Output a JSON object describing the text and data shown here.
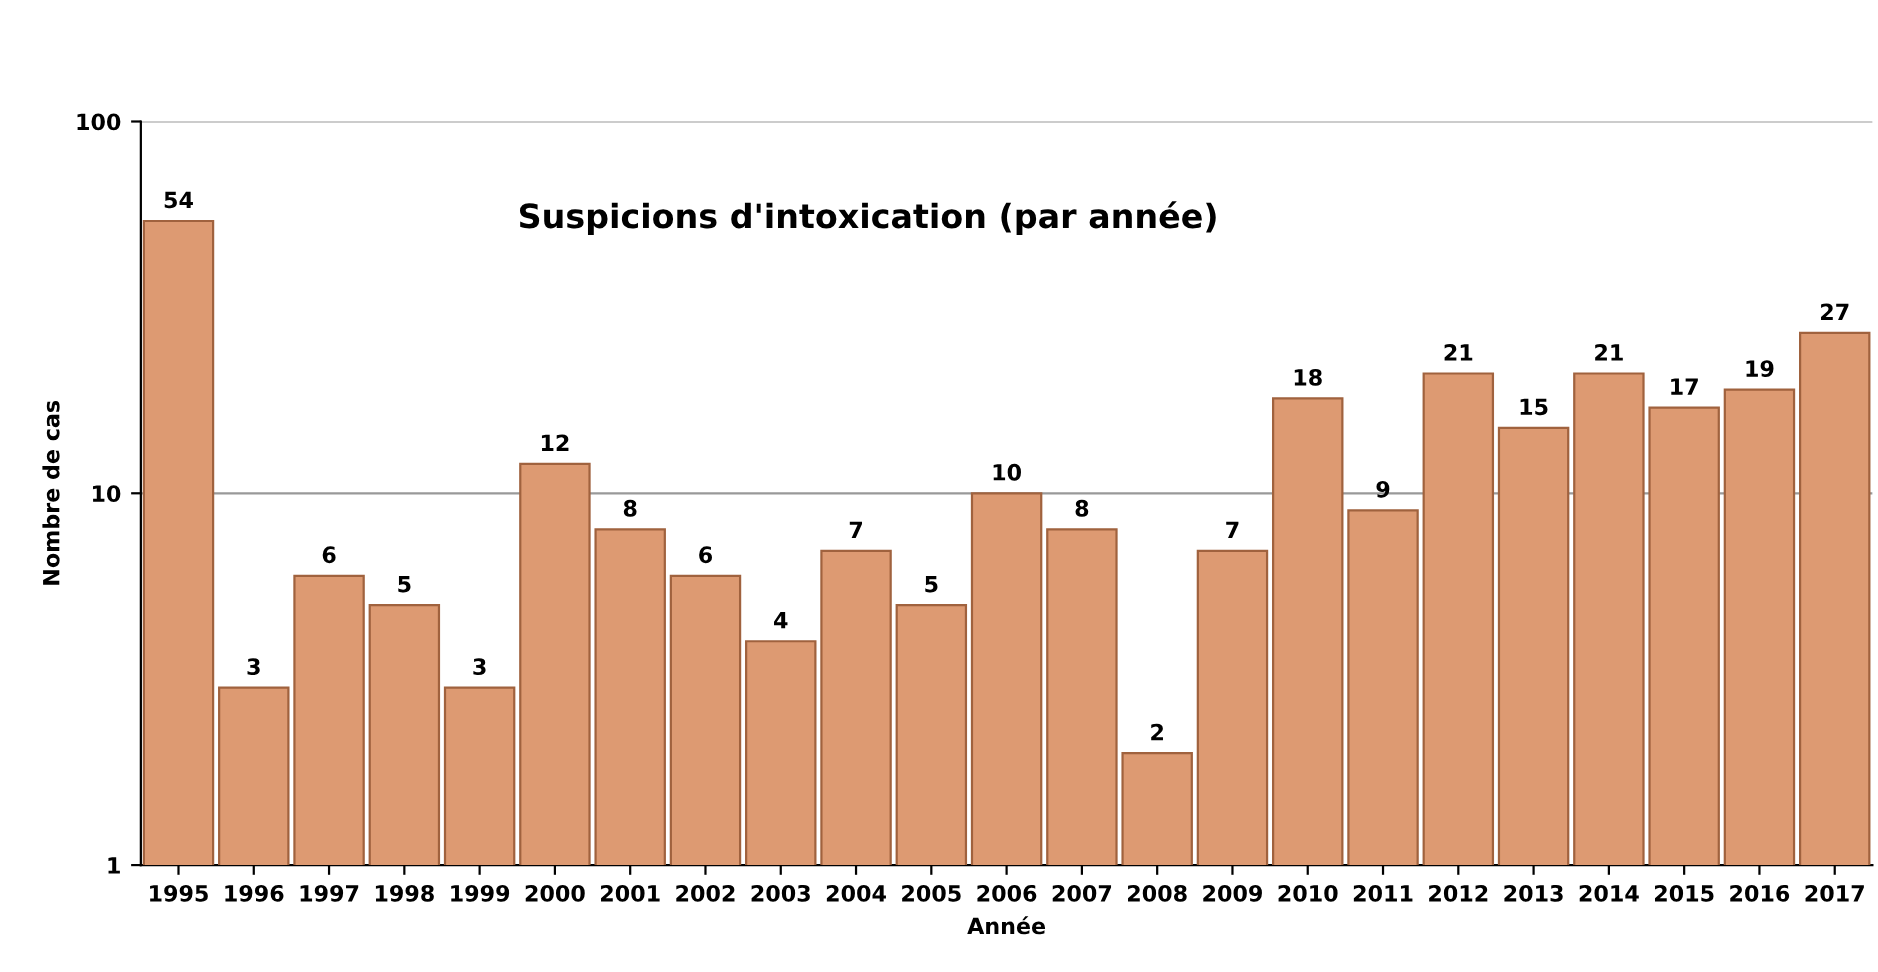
{
  "chart_data": {
    "type": "bar",
    "title": "Suspicions d'intoxication (par année)",
    "xlabel": "Année",
    "ylabel": "Nombre de cas",
    "categories": [
      "1995",
      "1996",
      "1997",
      "1998",
      "1999",
      "2000",
      "2001",
      "2002",
      "2003",
      "2004",
      "2005",
      "2006",
      "2007",
      "2008",
      "2009",
      "2010",
      "2011",
      "2012",
      "2013",
      "2014",
      "2015",
      "2016",
      "2017"
    ],
    "values": [
      54,
      3,
      6,
      5,
      3,
      12,
      8,
      6,
      4,
      7,
      5,
      10,
      8,
      2,
      7,
      18,
      9,
      21,
      15,
      21,
      17,
      19,
      27
    ],
    "color": "#dd9a72",
    "log": true,
    "ylim": [
      1,
      100
    ],
    "yticks": [
      1,
      10,
      100
    ],
    "grid": "y",
    "data_labels": true
  }
}
